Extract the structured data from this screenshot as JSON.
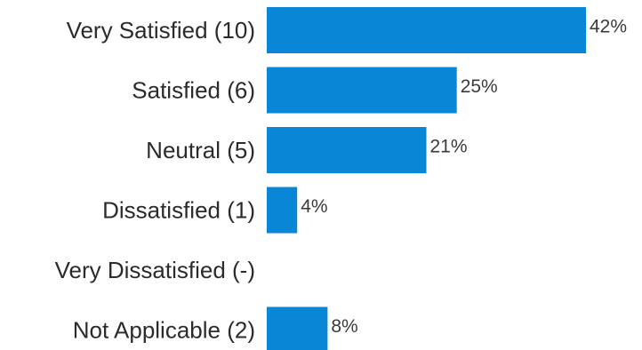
{
  "chart_data": {
    "type": "bar",
    "orientation": "horizontal",
    "categories": [
      "Very Satisfied (10)",
      "Satisfied (6)",
      "Neutral (5)",
      "Dissatisfied (1)",
      "Very Dissatisfied (-)",
      "Not Applicable (2)"
    ],
    "values": [
      42,
      25,
      21,
      4,
      null,
      8
    ],
    "data_labels": [
      "42%",
      "25%",
      "21%",
      "4%",
      "",
      "8%"
    ],
    "title": "",
    "xlabel": "",
    "ylabel": "",
    "xlim": [
      0,
      42
    ],
    "grid": false,
    "legend": "none",
    "bar_color": "#0a86d6",
    "label_color": "#2b2b2b",
    "value_label_color": "#3a3a3a"
  }
}
